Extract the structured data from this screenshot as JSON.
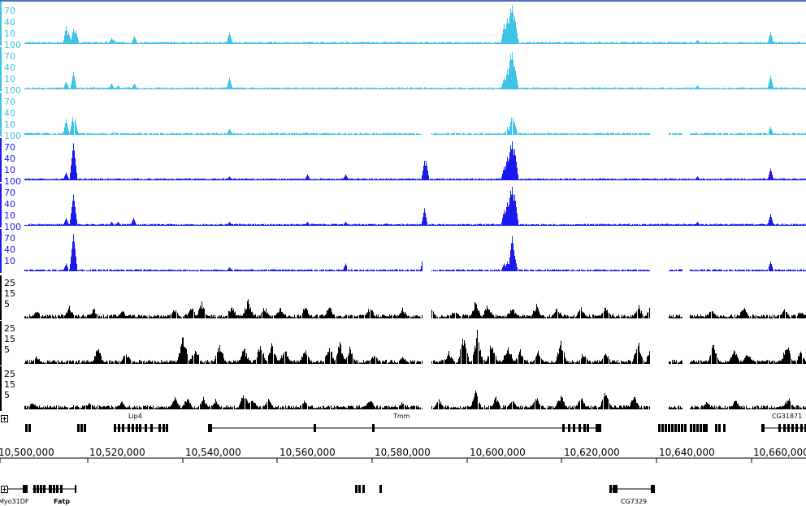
{
  "colors": {
    "cyan": "#3ec3e6",
    "blue": "#1a1aee",
    "black": "#000000"
  },
  "tracks": [
    {
      "color": "#3ec3e6",
      "ticks": [
        "70",
        "40",
        "10",
        "100"
      ],
      "peaks": [
        [
          81,
          0.45
        ],
        [
          84,
          0.3
        ],
        [
          90,
          0.4
        ],
        [
          93,
          0.35
        ],
        [
          137,
          0.15
        ],
        [
          140,
          0.1
        ],
        [
          165,
          0.2
        ],
        [
          282,
          0.3
        ],
        [
          620,
          0.5
        ],
        [
          624,
          0.65
        ],
        [
          628,
          0.9
        ],
        [
          630,
          1.0
        ],
        [
          633,
          0.7
        ],
        [
          858,
          0.1
        ],
        [
          948,
          0.3
        ]
      ]
    },
    {
      "color": "#3ec3e6",
      "ticks": [
        "70",
        "40",
        "10",
        "100"
      ],
      "peaks": [
        [
          81,
          0.2
        ],
        [
          90,
          0.45
        ],
        [
          137,
          0.15
        ],
        [
          145,
          0.1
        ],
        [
          165,
          0.15
        ],
        [
          282,
          0.3
        ],
        [
          620,
          0.3
        ],
        [
          624,
          0.5
        ],
        [
          628,
          0.9
        ],
        [
          630,
          0.95
        ],
        [
          633,
          0.6
        ],
        [
          858,
          0.1
        ],
        [
          948,
          0.35
        ]
      ]
    },
    {
      "color": "#3ec3e6",
      "ticks": [
        "70",
        "40",
        "10",
        "100"
      ],
      "peaks": [
        [
          81,
          0.4
        ],
        [
          89,
          0.45
        ],
        [
          92,
          0.4
        ],
        [
          140,
          0.1
        ],
        [
          282,
          0.15
        ],
        [
          624,
          0.2
        ],
        [
          630,
          0.55
        ],
        [
          633,
          0.3
        ],
        [
          948,
          0.2
        ]
      ]
    },
    {
      "color": "#1a1aee",
      "ticks": [
        "70",
        "40",
        "10",
        "100"
      ],
      "peaks": [
        [
          81,
          0.2
        ],
        [
          90,
          0.95
        ],
        [
          282,
          0.1
        ],
        [
          378,
          0.15
        ],
        [
          425,
          0.15
        ],
        [
          522,
          0.5
        ],
        [
          524,
          0.5
        ],
        [
          620,
          0.35
        ],
        [
          624,
          0.6
        ],
        [
          628,
          0.9
        ],
        [
          630,
          1.0
        ],
        [
          633,
          0.8
        ],
        [
          858,
          0.1
        ],
        [
          948,
          0.3
        ]
      ]
    },
    {
      "color": "#1a1aee",
      "ticks": [
        "70",
        "40",
        "10",
        "100"
      ],
      "peaks": [
        [
          81,
          0.2
        ],
        [
          90,
          0.8
        ],
        [
          137,
          0.1
        ],
        [
          145,
          0.1
        ],
        [
          164,
          0.2
        ],
        [
          282,
          0.1
        ],
        [
          378,
          0.1
        ],
        [
          425,
          0.1
        ],
        [
          522,
          0.45
        ],
        [
          620,
          0.4
        ],
        [
          624,
          0.6
        ],
        [
          628,
          0.9
        ],
        [
          630,
          1.0
        ],
        [
          633,
          0.8
        ],
        [
          858,
          0.1
        ],
        [
          948,
          0.3
        ]
      ]
    },
    {
      "color": "#1a1aee",
      "ticks": [
        "70",
        "40",
        "10"
      ],
      "peaks": [
        [
          81,
          0.2
        ],
        [
          90,
          0.95
        ],
        [
          145,
          0.05
        ],
        [
          282,
          0.1
        ],
        [
          425,
          0.2
        ],
        [
          522,
          0.65
        ],
        [
          524,
          0.6
        ],
        [
          620,
          0.2
        ],
        [
          624,
          0.25
        ],
        [
          630,
          0.9
        ],
        [
          633,
          0.4
        ],
        [
          948,
          0.25
        ]
      ]
    },
    {
      "color": "#000000",
      "ticks": [
        "25",
        "15",
        "5"
      ],
      "peaks": [
        [
          45,
          0.2
        ],
        [
          85,
          0.3
        ],
        [
          115,
          0.25
        ],
        [
          150,
          0.2
        ],
        [
          215,
          0.25
        ],
        [
          235,
          0.3
        ],
        [
          248,
          0.4
        ],
        [
          285,
          0.35
        ],
        [
          305,
          0.5
        ],
        [
          325,
          0.3
        ],
        [
          345,
          0.3
        ],
        [
          375,
          0.3
        ],
        [
          405,
          0.3
        ],
        [
          455,
          0.3
        ],
        [
          495,
          0.25
        ],
        [
          530,
          0.3
        ],
        [
          560,
          0.25
        ],
        [
          585,
          0.45
        ],
        [
          600,
          0.35
        ],
        [
          630,
          0.3
        ],
        [
          660,
          0.35
        ],
        [
          685,
          0.3
        ],
        [
          715,
          0.3
        ],
        [
          745,
          0.35
        ],
        [
          785,
          0.35
        ],
        [
          800,
          0.3
        ],
        [
          875,
          0.25
        ],
        [
          915,
          0.3
        ],
        [
          965,
          0.25
        ],
        [
          985,
          0.2
        ]
      ]
    },
    {
      "color": "#000000",
      "ticks": [
        "25",
        "15",
        "5"
      ],
      "peaks": [
        [
          45,
          0.2
        ],
        [
          85,
          0.1
        ],
        [
          120,
          0.4
        ],
        [
          155,
          0.3
        ],
        [
          225,
          0.7
        ],
        [
          240,
          0.45
        ],
        [
          270,
          0.5
        ],
        [
          300,
          0.4
        ],
        [
          320,
          0.5
        ],
        [
          335,
          0.55
        ],
        [
          350,
          0.4
        ],
        [
          375,
          0.4
        ],
        [
          405,
          0.45
        ],
        [
          418,
          0.55
        ],
        [
          430,
          0.45
        ],
        [
          460,
          0.25
        ],
        [
          495,
          0.2
        ],
        [
          525,
          0.3
        ],
        [
          552,
          0.3
        ],
        [
          570,
          0.7
        ],
        [
          587,
          0.8
        ],
        [
          605,
          0.6
        ],
        [
          625,
          0.5
        ],
        [
          640,
          0.35
        ],
        [
          662,
          0.35
        ],
        [
          690,
          0.55
        ],
        [
          718,
          0.3
        ],
        [
          745,
          0.3
        ],
        [
          785,
          0.6
        ],
        [
          802,
          0.65
        ],
        [
          878,
          0.5
        ],
        [
          903,
          0.4
        ],
        [
          920,
          0.3
        ],
        [
          968,
          0.55
        ],
        [
          985,
          0.3
        ]
      ]
    },
    {
      "color": "#000000",
      "ticks": [
        "25",
        "15",
        "5"
      ],
      "peaks": [
        [
          40,
          0.2
        ],
        [
          110,
          0.2
        ],
        [
          150,
          0.2
        ],
        [
          215,
          0.3
        ],
        [
          230,
          0.3
        ],
        [
          250,
          0.3
        ],
        [
          265,
          0.25
        ],
        [
          300,
          0.45
        ],
        [
          310,
          0.3
        ],
        [
          330,
          0.3
        ],
        [
          375,
          0.25
        ],
        [
          455,
          0.25
        ],
        [
          495,
          0.2
        ],
        [
          540,
          0.25
        ],
        [
          585,
          0.45
        ],
        [
          610,
          0.3
        ],
        [
          630,
          0.25
        ],
        [
          660,
          0.35
        ],
        [
          690,
          0.4
        ],
        [
          715,
          0.3
        ],
        [
          745,
          0.5
        ],
        [
          780,
          0.35
        ],
        [
          805,
          0.3
        ],
        [
          870,
          0.2
        ],
        [
          905,
          0.25
        ],
        [
          970,
          0.3
        ]
      ]
    }
  ],
  "genes_top": {
    "labels": [
      {
        "text": "Lip4",
        "x": 158
      },
      {
        "text": "Tmm",
        "x": 484
      },
      {
        "text": "CG31871",
        "x": 950
      }
    ]
  },
  "ruler": {
    "labels": [
      "10,500,000",
      "10,520,000",
      "10,540,000",
      "10,560,000",
      "10,580,000",
      "10,600,000",
      "10,620,000",
      "10,640,000",
      "10,660,000"
    ]
  },
  "genes_bottom": {
    "labels": [
      {
        "text": "Myo31DF",
        "x": -2
      },
      {
        "text": "Fatp",
        "x": 66
      },
      {
        "text": "CG7329",
        "x": 764
      }
    ]
  }
}
